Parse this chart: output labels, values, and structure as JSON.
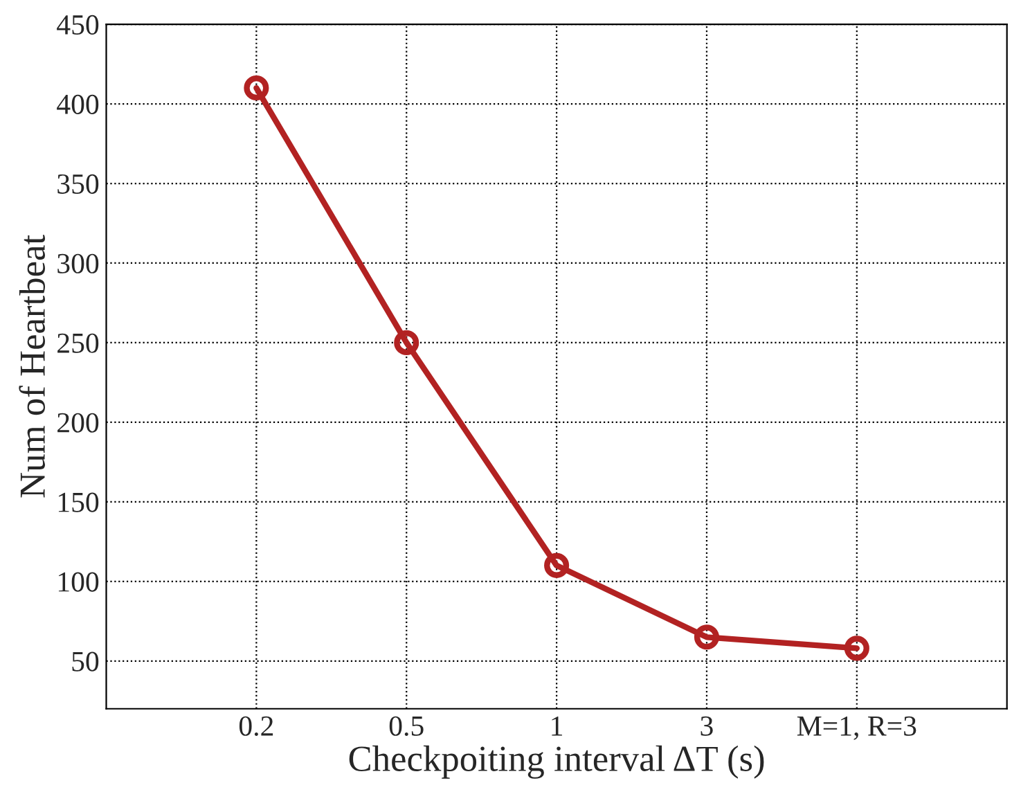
{
  "chart_data": {
    "type": "line",
    "xlabel": "Checkpoiting interval ΔT (s)",
    "ylabel": "Num of Heartbeat",
    "categories": [
      "0.2",
      "0.5",
      "1",
      "3",
      "M=1, R=3"
    ],
    "series": [
      {
        "color": "#b22222",
        "values": [
          410,
          250,
          110,
          65,
          58
        ]
      }
    ],
    "ylim": [
      20,
      450
    ],
    "yticks": [
      50,
      100,
      150,
      200,
      250,
      300,
      350,
      400,
      450
    ],
    "grid": true,
    "marker": "circle",
    "line_style": "solid"
  }
}
